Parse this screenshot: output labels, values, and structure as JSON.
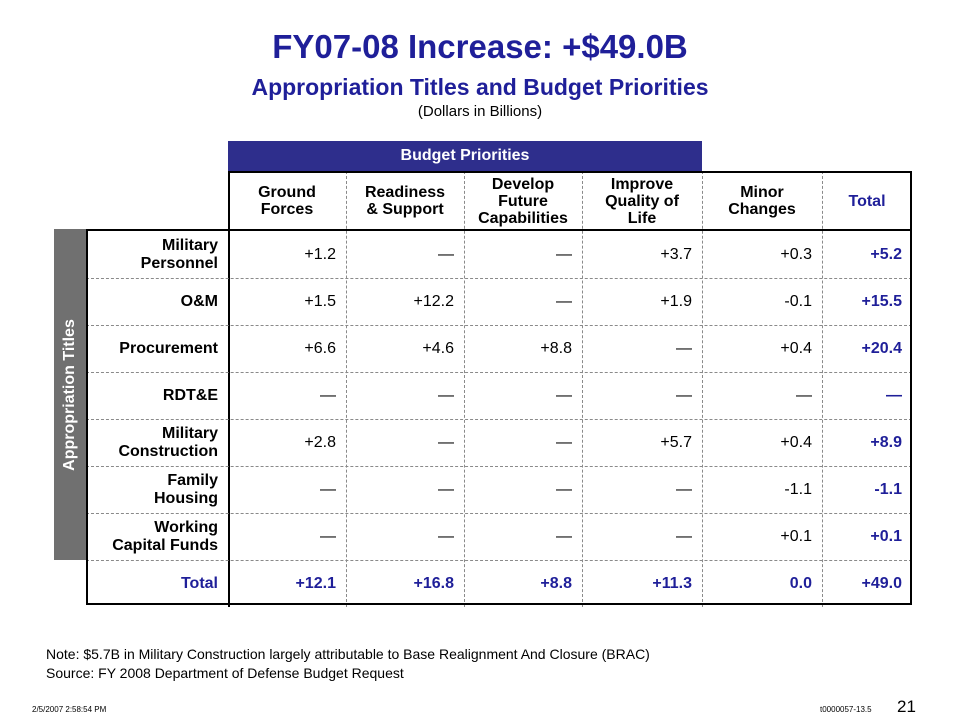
{
  "title": "FY07-08 Increase: +$49.0B",
  "subtitle": "Appropriation Titles and Budget Priorities",
  "units": "(Dollars in Billions)",
  "budget_priorities_label": "Budget Priorities",
  "appropriation_titles_label": "Appropriation Titles",
  "columns": [
    "Ground\nForces",
    "Readiness\n& Support",
    "Develop\nFuture\nCapabilities",
    "Improve\nQuality of\nLife",
    "Minor\nChanges",
    "Total"
  ],
  "rows": [
    {
      "label": "Military\nPersonnel",
      "values": [
        "+1.2",
        "—",
        "—",
        "+3.7",
        "+0.3",
        "+5.2"
      ]
    },
    {
      "label": "O&M",
      "values": [
        "+1.5",
        "+12.2",
        "—",
        "+1.9",
        "-0.1",
        "+15.5"
      ]
    },
    {
      "label": "Procurement",
      "values": [
        "+6.6",
        "+4.6",
        "+8.8",
        "—",
        "+0.4",
        "+20.4"
      ]
    },
    {
      "label": "RDT&E",
      "values": [
        "—",
        "—",
        "—",
        "—",
        "—",
        "—"
      ]
    },
    {
      "label": "Military\nConstruction",
      "values": [
        "+2.8",
        "—",
        "—",
        "+5.7",
        "+0.4",
        "+8.9"
      ]
    },
    {
      "label": "Family\nHousing",
      "values": [
        "—",
        "—",
        "—",
        "—",
        "-1.1",
        "-1.1"
      ]
    },
    {
      "label": "Working\nCapital Funds",
      "values": [
        "—",
        "—",
        "—",
        "—",
        "+0.1",
        "+0.1"
      ]
    },
    {
      "label": "Total",
      "values": [
        "+12.1",
        "+16.8",
        "+8.8",
        "+11.3",
        "0.0",
        "+49.0"
      ]
    }
  ],
  "note": "Note: $5.7B in Military Construction largely attributable to Base Realignment And Closure (BRAC)",
  "source": "Source: FY 2008 Department of Defense Budget Request",
  "footer_timestamp": "2/5/2007 2:58:54 PM",
  "footer_code": "t0000057-13.5",
  "page_number": "21",
  "colors": {
    "title_blue": "#1f1f99",
    "header_bar": "#2e2e8c",
    "side_bar": "#707070"
  }
}
